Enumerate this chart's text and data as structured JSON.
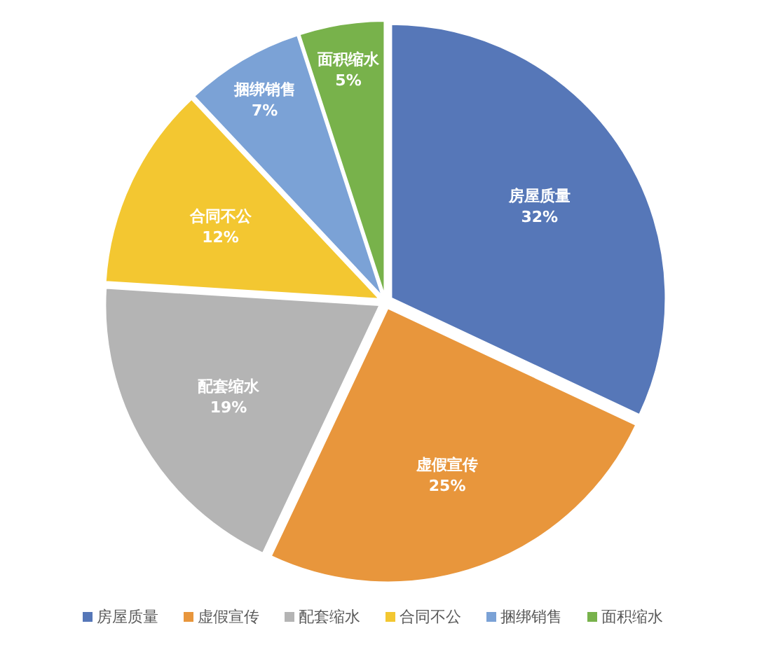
{
  "chart_data": {
    "type": "pie",
    "categories": [
      "房屋质量",
      "虚假宣传",
      "配套缩水",
      "合同不公",
      "捆绑销售",
      "面积缩水"
    ],
    "values": [
      32,
      25,
      19,
      12,
      7,
      5
    ],
    "value_labels": [
      "32%",
      "25%",
      "19%",
      "12%",
      "7%",
      "5%"
    ],
    "colors": [
      "#5677b8",
      "#e8963c",
      "#b4b4b4",
      "#f3c731",
      "#7ba2d6",
      "#78b24b"
    ],
    "legend": "bottom"
  }
}
